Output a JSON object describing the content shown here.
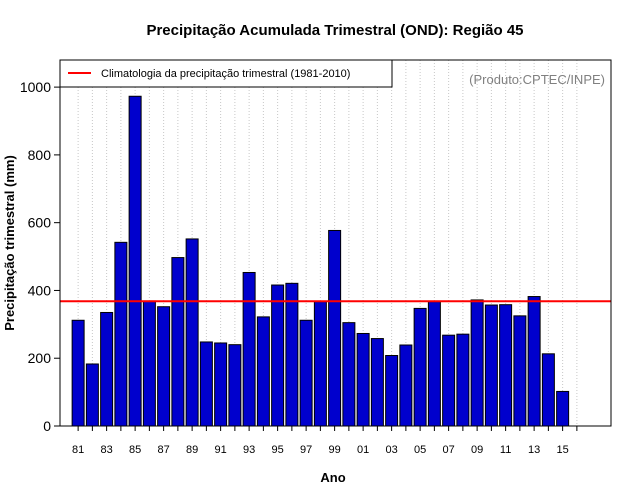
{
  "chart_data": {
    "type": "bar",
    "title": "Precipitação Acumulada Trimestral (OND): Região 45",
    "xlabel": "Ano",
    "ylabel": "Precipitação trimestral (mm)",
    "ylim": [
      0,
      1080
    ],
    "yticks": [
      0,
      200,
      400,
      600,
      800,
      1000
    ],
    "categories": [
      "81",
      "82",
      "83",
      "84",
      "85",
      "86",
      "87",
      "88",
      "89",
      "90",
      "91",
      "92",
      "93",
      "94",
      "95",
      "96",
      "97",
      "98",
      "99",
      "00",
      "01",
      "02",
      "03",
      "04",
      "05",
      "06",
      "07",
      "08",
      "09",
      "10",
      "11",
      "12",
      "13",
      "14",
      "15",
      "16"
    ],
    "xtick_labels": [
      "81",
      "83",
      "85",
      "87",
      "89",
      "91",
      "93",
      "95",
      "97",
      "99",
      "01",
      "03",
      "05",
      "07",
      "09",
      "11",
      "13",
      "15"
    ],
    "series": [
      {
        "name": "Precipitação trimestral",
        "color": "#0000cd",
        "values": [
          312,
          183,
          335,
          542,
          973,
          369,
          352,
          497,
          552,
          248,
          245,
          240,
          453,
          322,
          416,
          421,
          312,
          367,
          577,
          305,
          273,
          258,
          208,
          239,
          347,
          367,
          268,
          271,
          372,
          357,
          358,
          325,
          382,
          213,
          102,
          null
        ]
      }
    ],
    "climatology": {
      "label": "Climatologia da precipitação trimestral (1981-2010)",
      "value": 368,
      "color": "#ff0000"
    },
    "source_note": "(Produto:CPTEC/INPE)",
    "grid": "vertical dotted",
    "legend_position": "top-left"
  }
}
